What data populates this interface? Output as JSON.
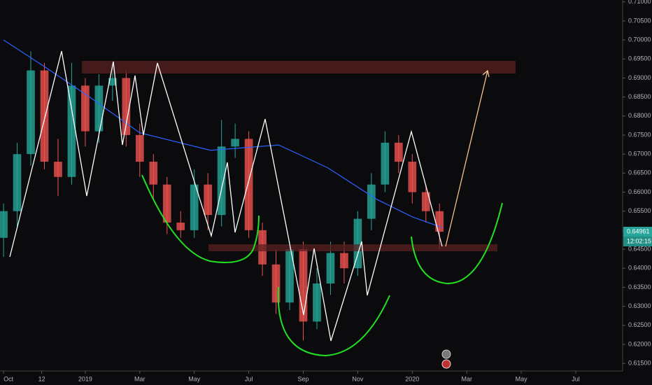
{
  "chart_data": {
    "type": "candlestick",
    "x": [
      0,
      0.5,
      1,
      1.5,
      2,
      2.5,
      3,
      3.5,
      4,
      4.5,
      5,
      5.5,
      6,
      6.5,
      7,
      7.5,
      8,
      8.5,
      9,
      9.5,
      10,
      10.5,
      11,
      11.5,
      12,
      12.5,
      13,
      13.5,
      14,
      14.5,
      15,
      15.5,
      16
    ],
    "open": [
      0.648,
      0.655,
      0.67,
      0.692,
      0.668,
      0.664,
      0.688,
      0.676,
      0.688,
      0.69,
      0.675,
      0.668,
      0.662,
      0.652,
      0.65,
      0.662,
      0.654,
      0.672,
      0.674,
      0.65,
      0.641,
      0.631,
      0.645,
      0.626,
      0.636,
      0.644,
      0.64,
      0.653,
      0.662,
      0.673,
      0.668,
      0.66,
      0.655
    ],
    "high": [
      0.657,
      0.673,
      0.697,
      0.694,
      0.674,
      0.694,
      0.69,
      0.691,
      0.694,
      0.692,
      0.678,
      0.67,
      0.664,
      0.655,
      0.666,
      0.665,
      0.679,
      0.678,
      0.676,
      0.652,
      0.645,
      0.647,
      0.647,
      0.64,
      0.647,
      0.647,
      0.655,
      0.665,
      0.676,
      0.675,
      0.67,
      0.662,
      0.657
    ],
    "low": [
      0.643,
      0.651,
      0.667,
      0.666,
      0.659,
      0.662,
      0.672,
      0.673,
      0.684,
      0.672,
      0.664,
      0.658,
      0.649,
      0.648,
      0.648,
      0.65,
      0.651,
      0.669,
      0.648,
      0.638,
      0.628,
      0.629,
      0.621,
      0.624,
      0.633,
      0.636,
      0.638,
      0.65,
      0.66,
      0.665,
      0.657,
      0.652,
      0.645
    ],
    "close": [
      0.655,
      0.67,
      0.692,
      0.668,
      0.664,
      0.688,
      0.676,
      0.688,
      0.69,
      0.675,
      0.668,
      0.662,
      0.652,
      0.65,
      0.662,
      0.654,
      0.672,
      0.674,
      0.65,
      0.641,
      0.631,
      0.645,
      0.626,
      0.636,
      0.644,
      0.64,
      0.653,
      0.662,
      0.673,
      0.668,
      0.66,
      0.655,
      0.64961
    ],
    "up_color": "#26a69a",
    "down_color": "#ef5350",
    "moving_average": {
      "x": [
        0,
        1.5,
        3.2,
        5.0,
        7.6,
        10.1,
        11.9,
        13.7,
        15.0,
        16.1
      ],
      "values": [
        0.7,
        0.693,
        0.6848,
        0.6756,
        0.671,
        0.6724,
        0.6664,
        0.6581,
        0.6535,
        0.6507
      ],
      "color": "#2962ff"
    },
    "last_price": 0.64961,
    "last_price_color": "#26a69a",
    "countdown": "12:02:15",
    "ylim": [
      0.613,
      0.7105
    ],
    "yticks": [
      {
        "value": 0.615,
        "label": "0.61500"
      },
      {
        "value": 0.62,
        "label": "0.62000"
      },
      {
        "value": 0.625,
        "label": "0.62500"
      },
      {
        "value": 0.63,
        "label": "0.63000"
      },
      {
        "value": 0.635,
        "label": "0.63500"
      },
      {
        "value": 0.64,
        "label": "0.64000"
      },
      {
        "value": 0.645,
        "label": "0.64500"
      },
      {
        "value": 0.65,
        "label": "0.65000"
      },
      {
        "value": 0.655,
        "label": "0.65500"
      },
      {
        "value": 0.66,
        "label": "0.66000"
      },
      {
        "value": 0.665,
        "label": "0.66500"
      },
      {
        "value": 0.67,
        "label": "0.67000"
      },
      {
        "value": 0.675,
        "label": "0.67500"
      },
      {
        "value": 0.68,
        "label": "0.68000"
      },
      {
        "value": 0.685,
        "label": "0.68500"
      },
      {
        "value": 0.69,
        "label": "0.69000"
      },
      {
        "value": 0.695,
        "label": "0.69500"
      },
      {
        "value": 0.7,
        "label": "0.70000"
      },
      {
        "value": 0.705,
        "label": "0.70500"
      },
      {
        "value": 0.71,
        "label": "0.71000"
      }
    ],
    "xlim": [
      -0.13,
      22.72
    ],
    "xticks": [
      {
        "value": 0,
        "label": "Oct"
      },
      {
        "value": 1.4,
        "label": "12"
      },
      {
        "value": 3,
        "label": "2019"
      },
      {
        "value": 5,
        "label": "Mar"
      },
      {
        "value": 7,
        "label": "May"
      },
      {
        "value": 9,
        "label": "Jul"
      },
      {
        "value": 11,
        "label": "Sep"
      },
      {
        "value": 13,
        "label": "Nov"
      },
      {
        "value": 15,
        "label": "2020"
      },
      {
        "value": 17,
        "label": "Mar"
      },
      {
        "value": 19,
        "label": "May"
      },
      {
        "value": 21,
        "label": "Jul"
      }
    ]
  }
}
